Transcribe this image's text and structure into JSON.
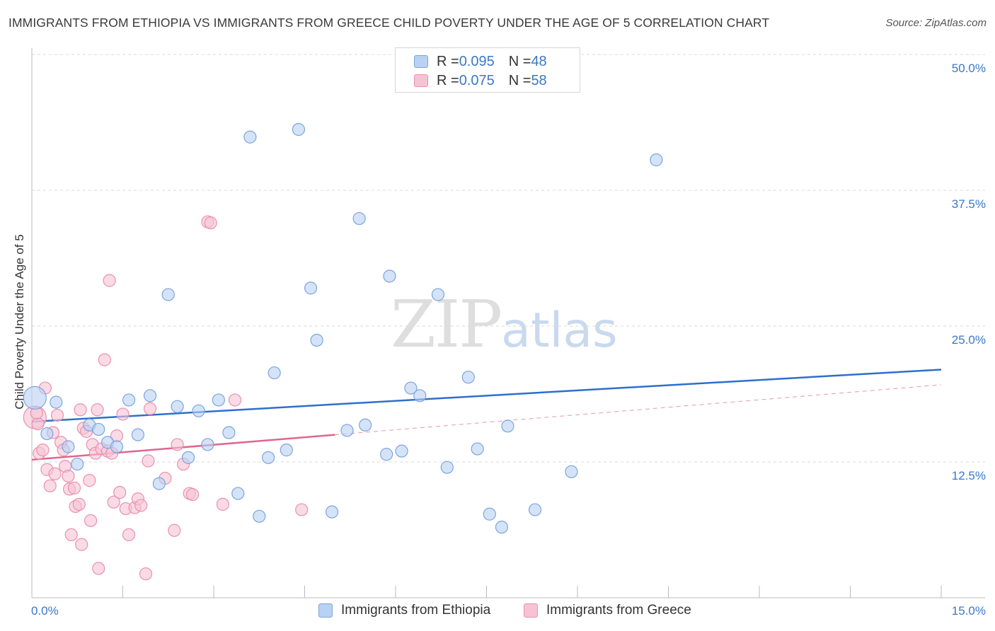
{
  "header": {
    "title": "IMMIGRANTS FROM ETHIOPIA VS IMMIGRANTS FROM GREECE CHILD POVERTY UNDER THE AGE OF 5 CORRELATION CHART",
    "source": "Source: ZipAtlas.com"
  },
  "watermark": {
    "zip": "ZIP",
    "atlas": "atlas"
  },
  "legend": {
    "ethiopia": {
      "r_label": "R = ",
      "r_value": "0.095",
      "n_label": "N = ",
      "n_value": "48"
    },
    "greece": {
      "r_label": "R = ",
      "r_value": "0.075",
      "n_label": "N = ",
      "n_value": "58"
    }
  },
  "colors": {
    "ethiopia_fill": "#b9d1f3",
    "ethiopia_stroke": "#7aa5de",
    "ethiopia_line": "#2e6fcc",
    "greece_fill": "#f7c3d4",
    "greece_stroke": "#e990ae",
    "greece_line": "#e0668e",
    "grid": "#d9d9d9",
    "tick_label": "#3a78c8"
  },
  "chart_data": {
    "type": "scatter",
    "title": "IMMIGRANTS FROM ETHIOPIA VS IMMIGRANTS FROM GREECE CHILD POVERTY UNDER THE AGE OF 5 CORRELATION CHART",
    "xlabel": "",
    "ylabel": "Child Poverty Under the Age of 5",
    "xlim": [
      0,
      15
    ],
    "ylim": [
      0,
      50
    ],
    "x_tick_labels": [
      "0.0%",
      "15.0%"
    ],
    "y_ticks": [
      12.5,
      25.0,
      37.5,
      50.0
    ],
    "y_tick_labels": [
      "12.5%",
      "25.0%",
      "37.5%",
      "50.0%"
    ],
    "legend_position": "bottom",
    "series": [
      {
        "name": "Immigrants from Ethiopia",
        "r": 0.095,
        "n": 48,
        "trend": {
          "x": [
            0.0,
            15.0
          ],
          "y": [
            16.2,
            21.0
          ],
          "dashed_after": null
        },
        "points": [
          {
            "x": 0.05,
            "y": 18.4,
            "big": true
          },
          {
            "x": 0.4,
            "y": 18.0
          },
          {
            "x": 0.25,
            "y": 15.1
          },
          {
            "x": 0.6,
            "y": 13.9
          },
          {
            "x": 0.75,
            "y": 12.3
          },
          {
            "x": 0.95,
            "y": 15.9
          },
          {
            "x": 1.1,
            "y": 15.5
          },
          {
            "x": 1.25,
            "y": 14.3
          },
          {
            "x": 1.4,
            "y": 13.9
          },
          {
            "x": 1.6,
            "y": 18.2
          },
          {
            "x": 1.75,
            "y": 15.0
          },
          {
            "x": 1.95,
            "y": 18.6
          },
          {
            "x": 2.1,
            "y": 10.5
          },
          {
            "x": 2.25,
            "y": 27.9
          },
          {
            "x": 2.4,
            "y": 17.6
          },
          {
            "x": 2.58,
            "y": 12.9
          },
          {
            "x": 2.75,
            "y": 17.2
          },
          {
            "x": 2.9,
            "y": 14.1
          },
          {
            "x": 3.08,
            "y": 18.2
          },
          {
            "x": 3.25,
            "y": 15.2
          },
          {
            "x": 3.4,
            "y": 9.6
          },
          {
            "x": 3.6,
            "y": 42.4
          },
          {
            "x": 3.75,
            "y": 7.5
          },
          {
            "x": 3.9,
            "y": 12.9
          },
          {
            "x": 4.0,
            "y": 20.7
          },
          {
            "x": 4.2,
            "y": 13.6
          },
          {
            "x": 4.4,
            "y": 43.1
          },
          {
            "x": 4.6,
            "y": 28.5
          },
          {
            "x": 4.7,
            "y": 23.7
          },
          {
            "x": 4.95,
            "y": 7.9
          },
          {
            "x": 5.2,
            "y": 15.4
          },
          {
            "x": 5.4,
            "y": 34.9
          },
          {
            "x": 5.5,
            "y": 15.9
          },
          {
            "x": 5.85,
            "y": 13.2
          },
          {
            "x": 5.9,
            "y": 29.6
          },
          {
            "x": 6.1,
            "y": 13.5
          },
          {
            "x": 6.25,
            "y": 19.3
          },
          {
            "x": 6.4,
            "y": 18.6
          },
          {
            "x": 6.7,
            "y": 27.9
          },
          {
            "x": 6.85,
            "y": 12.0
          },
          {
            "x": 7.2,
            "y": 20.3
          },
          {
            "x": 7.35,
            "y": 13.7
          },
          {
            "x": 7.55,
            "y": 7.7
          },
          {
            "x": 7.75,
            "y": 6.5
          },
          {
            "x": 7.85,
            "y": 15.8
          },
          {
            "x": 8.3,
            "y": 8.1
          },
          {
            "x": 8.9,
            "y": 11.6
          },
          {
            "x": 10.3,
            "y": 40.3
          }
        ]
      },
      {
        "name": "Immigrants from Greece",
        "r": 0.075,
        "n": 58,
        "trend": {
          "x": [
            0.0,
            5.0,
            15.0
          ],
          "y": [
            12.7,
            15.0,
            19.6
          ],
          "dashed_after": 5.0
        },
        "points": [
          {
            "x": 0.05,
            "y": 16.6,
            "big": true
          },
          {
            "x": 0.1,
            "y": 16.0
          },
          {
            "x": 0.12,
            "y": 13.3
          },
          {
            "x": 0.18,
            "y": 13.6
          },
          {
            "x": 0.22,
            "y": 19.3
          },
          {
            "x": 0.25,
            "y": 11.8
          },
          {
            "x": 0.3,
            "y": 10.3
          },
          {
            "x": 0.35,
            "y": 15.2
          },
          {
            "x": 0.38,
            "y": 11.4
          },
          {
            "x": 0.42,
            "y": 16.8
          },
          {
            "x": 0.48,
            "y": 14.3
          },
          {
            "x": 0.52,
            "y": 13.6
          },
          {
            "x": 0.55,
            "y": 12.1
          },
          {
            "x": 0.6,
            "y": 11.2
          },
          {
            "x": 0.62,
            "y": 10.0
          },
          {
            "x": 0.65,
            "y": 5.8
          },
          {
            "x": 0.7,
            "y": 10.1
          },
          {
            "x": 0.72,
            "y": 8.4
          },
          {
            "x": 0.78,
            "y": 8.6
          },
          {
            "x": 0.8,
            "y": 17.3
          },
          {
            "x": 0.85,
            "y": 15.6
          },
          {
            "x": 0.82,
            "y": 4.9
          },
          {
            "x": 0.9,
            "y": 15.3
          },
          {
            "x": 0.95,
            "y": 10.8
          },
          {
            "x": 0.97,
            "y": 7.1
          },
          {
            "x": 1.0,
            "y": 14.1
          },
          {
            "x": 1.05,
            "y": 13.3
          },
          {
            "x": 1.08,
            "y": 17.3
          },
          {
            "x": 1.1,
            "y": 2.7
          },
          {
            "x": 1.15,
            "y": 13.7
          },
          {
            "x": 1.2,
            "y": 21.9
          },
          {
            "x": 1.25,
            "y": 13.5
          },
          {
            "x": 1.28,
            "y": 29.2
          },
          {
            "x": 1.32,
            "y": 13.3
          },
          {
            "x": 1.35,
            "y": 8.8
          },
          {
            "x": 1.4,
            "y": 14.9
          },
          {
            "x": 1.45,
            "y": 9.7
          },
          {
            "x": 1.5,
            "y": 16.9
          },
          {
            "x": 1.55,
            "y": 8.2
          },
          {
            "x": 1.6,
            "y": 5.8
          },
          {
            "x": 1.7,
            "y": 8.3
          },
          {
            "x": 1.75,
            "y": 9.1
          },
          {
            "x": 1.8,
            "y": 8.5
          },
          {
            "x": 1.88,
            "y": 2.2
          },
          {
            "x": 1.92,
            "y": 12.6
          },
          {
            "x": 1.95,
            "y": 17.4
          },
          {
            "x": 2.2,
            "y": 11.0
          },
          {
            "x": 2.35,
            "y": 6.2
          },
          {
            "x": 2.4,
            "y": 14.1
          },
          {
            "x": 2.5,
            "y": 12.3
          },
          {
            "x": 2.6,
            "y": 9.6
          },
          {
            "x": 2.65,
            "y": 9.5
          },
          {
            "x": 2.9,
            "y": 34.6
          },
          {
            "x": 2.95,
            "y": 34.5
          },
          {
            "x": 3.15,
            "y": 8.6
          },
          {
            "x": 3.35,
            "y": 18.2
          },
          {
            "x": 4.45,
            "y": 8.1
          },
          {
            "x": 0.08,
            "y": 17.0
          }
        ]
      }
    ]
  },
  "bottom_legend": {
    "ethiopia": "Immigrants from Ethiopia",
    "greece": "Immigrants from Greece"
  }
}
